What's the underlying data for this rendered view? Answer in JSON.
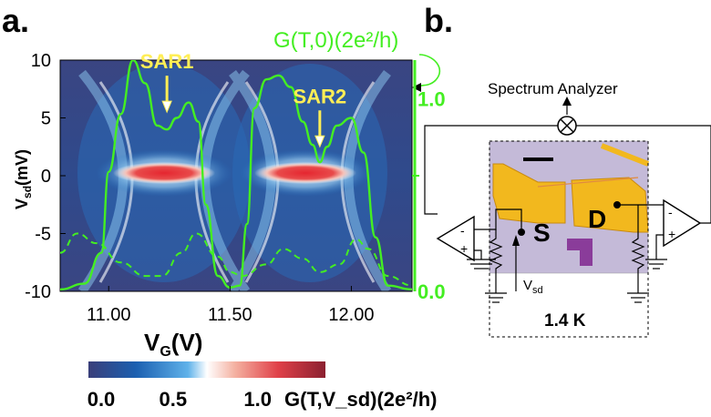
{
  "panels": {
    "a": "a.",
    "b": "b."
  },
  "colors": {
    "low": "#3a3f7a",
    "mid_blue": "#1f78c8",
    "white": "#ffffff",
    "high": "#e0303a",
    "green_trace": "#44ee22",
    "callout": "#ffee55",
    "gold": "#f0b020",
    "chip": "#b8aed0"
  },
  "chart_data": {
    "type": "heatmap",
    "title": "",
    "xlabel_main": "V",
    "xlabel_sub": "G",
    "xlabel_unit": "(V)",
    "ylabel_main": "V",
    "ylabel_sub": "sd",
    "ylabel_unit": "(mV)",
    "xlim": [
      10.8,
      12.25
    ],
    "ylim": [
      -10,
      10
    ],
    "xticks": [
      {
        "value": 11.0,
        "label": "11.00"
      },
      {
        "value": 11.5,
        "label": "11.50"
      },
      {
        "value": 12.0,
        "label": "12.00"
      }
    ],
    "yticks": [
      {
        "value": 10,
        "label": "10"
      },
      {
        "value": 5,
        "label": "5"
      },
      {
        "value": 0,
        "label": "0"
      },
      {
        "value": -5,
        "label": "-5"
      },
      {
        "value": -10,
        "label": "-10"
      }
    ],
    "right_axis": {
      "label": "G(T,0)(2e²/h)",
      "ylim": [
        0.0,
        1.2
      ],
      "ticks": [
        {
          "value": 1.0,
          "label": "1.0"
        },
        {
          "value": 0.0,
          "label": "0.0"
        }
      ]
    },
    "series": [
      {
        "style": "solid",
        "axis": "right",
        "x": [
          10.8,
          10.9,
          10.97,
          11.0,
          11.05,
          11.1,
          11.15,
          11.2,
          11.24,
          11.28,
          11.33,
          11.37,
          11.4,
          11.45,
          11.5,
          11.54,
          11.57,
          11.6,
          11.65,
          11.7,
          11.75,
          11.8,
          11.84,
          11.87,
          11.9,
          11.94,
          12.0,
          12.05,
          12.1,
          12.15,
          12.25
        ],
        "values": [
          0.01,
          0.04,
          0.2,
          0.62,
          0.92,
          1.2,
          1.08,
          0.86,
          0.84,
          0.9,
          0.98,
          0.88,
          0.45,
          0.08,
          0.02,
          0.03,
          0.35,
          0.95,
          1.1,
          1.12,
          1.06,
          0.88,
          0.76,
          0.67,
          0.75,
          0.86,
          0.9,
          0.72,
          0.28,
          0.03,
          0.01
        ]
      },
      {
        "style": "dashed",
        "axis": "right",
        "x": [
          10.8,
          10.87,
          10.95,
          11.05,
          11.15,
          11.22,
          11.3,
          11.36,
          11.45,
          11.5,
          11.55,
          11.65,
          11.72,
          11.8,
          11.87,
          11.95,
          12.02,
          12.07,
          12.15,
          12.25
        ],
        "values": [
          0.2,
          0.3,
          0.25,
          0.15,
          0.08,
          0.08,
          0.2,
          0.3,
          0.18,
          0.1,
          0.08,
          0.14,
          0.22,
          0.17,
          0.1,
          0.14,
          0.27,
          0.22,
          0.08,
          0.03
        ]
      }
    ],
    "colorbar": {
      "label": "G(T,V_sd)(2e²/h)",
      "ticks": [
        {
          "value": 0.0,
          "label": "0.0"
        },
        {
          "value": 0.5,
          "label": "0.5"
        },
        {
          "value": 1.0,
          "label": "1.0"
        }
      ],
      "range": [
        0.0,
        1.4
      ]
    },
    "annotations": [
      {
        "text": "SAR1",
        "x": 11.24,
        "y": 5.5
      },
      {
        "text": "SAR2",
        "x": 11.87,
        "y": 2.5
      }
    ]
  },
  "circuit": {
    "analyzer": "Spectrum Analyzer",
    "source_label": "S",
    "drain_label": "D",
    "vsd_label": "V",
    "vsd_sub": "sd",
    "temperature": "1.4 K",
    "amp_left_minus": "-",
    "amp_left_plus": "+",
    "amp_right_minus": "-",
    "amp_right_plus": "+"
  }
}
